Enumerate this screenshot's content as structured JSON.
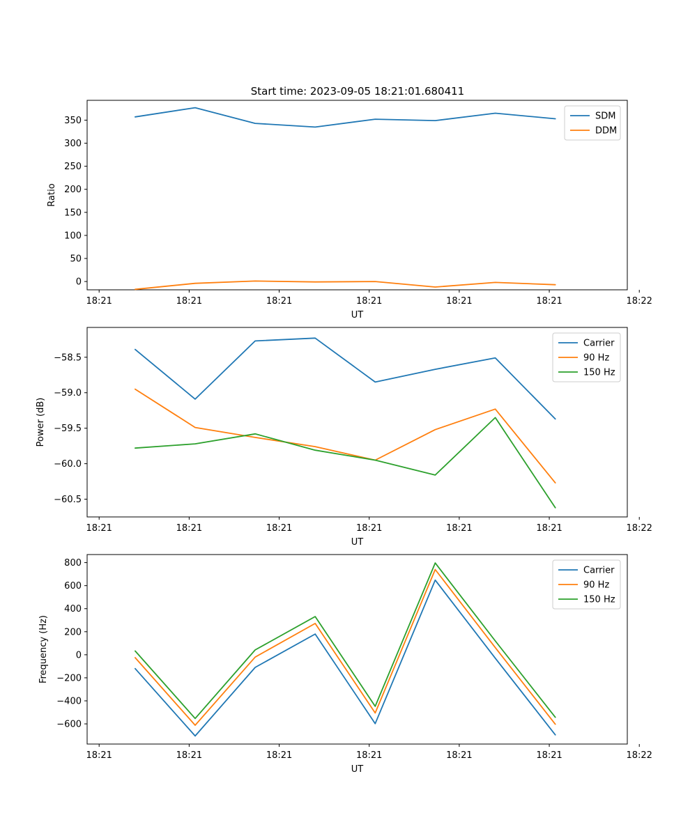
{
  "figure_title": "Start time: 2023-09-05 18:21:01.680411",
  "colors": {
    "blue": "#1f77b4",
    "orange": "#ff7f0e",
    "green": "#2ca02c"
  },
  "chart_data": [
    {
      "type": "line",
      "title": "Start time: 2023-09-05 18:21:01.680411",
      "xlabel": "UT",
      "ylabel": "Ratio",
      "x": [
        1,
        2,
        3,
        4,
        5,
        6,
        7,
        8
      ],
      "xlim": [
        0.2,
        9.2
      ],
      "x_ticks": [
        {
          "value": 0.4,
          "label": "18:21"
        },
        {
          "value": 1.9,
          "label": "18:21"
        },
        {
          "value": 3.4,
          "label": "18:21"
        },
        {
          "value": 4.9,
          "label": "18:21"
        },
        {
          "value": 6.4,
          "label": "18:21"
        },
        {
          "value": 7.9,
          "label": "18:21"
        },
        {
          "value": 9.4,
          "label": "18:22"
        }
      ],
      "ylim": [
        -18,
        393
      ],
      "y_ticks": [
        0,
        50,
        100,
        150,
        200,
        250,
        300,
        350
      ],
      "legend_position": "top-right",
      "series": [
        {
          "name": "SDM",
          "color": "#1f77b4",
          "values": [
            357,
            377,
            343,
            335,
            352,
            349,
            365,
            353
          ]
        },
        {
          "name": "DDM",
          "color": "#ff7f0e",
          "values": [
            -17,
            -4,
            1,
            -1,
            0,
            -12,
            -2,
            -7
          ]
        }
      ]
    },
    {
      "type": "line",
      "xlabel": "UT",
      "ylabel": "Power (dB)",
      "x": [
        1,
        2,
        3,
        4,
        5,
        6,
        7,
        8
      ],
      "xlim": [
        0.2,
        9.2
      ],
      "x_ticks": [
        {
          "value": 0.4,
          "label": "18:21"
        },
        {
          "value": 1.9,
          "label": "18:21"
        },
        {
          "value": 3.4,
          "label": "18:21"
        },
        {
          "value": 4.9,
          "label": "18:21"
        },
        {
          "value": 6.4,
          "label": "18:21"
        },
        {
          "value": 7.9,
          "label": "18:21"
        },
        {
          "value": 9.4,
          "label": "18:22"
        }
      ],
      "ylim": [
        -60.75,
        -58.08
      ],
      "y_ticks": [
        -60.5,
        -60.0,
        -59.5,
        -59.0,
        -58.5
      ],
      "legend_position": "top-right",
      "series": [
        {
          "name": "Carrier",
          "color": "#1f77b4",
          "values": [
            -58.39,
            -59.09,
            -58.27,
            -58.23,
            -58.85,
            -58.67,
            -58.51,
            -59.37
          ]
        },
        {
          "name": "90 Hz",
          "color": "#ff7f0e",
          "values": [
            -58.95,
            -59.49,
            -59.63,
            -59.76,
            -59.95,
            -59.52,
            -59.23,
            -60.27
          ]
        },
        {
          "name": "150 Hz",
          "color": "#2ca02c",
          "values": [
            -59.78,
            -59.72,
            -59.58,
            -59.81,
            -59.95,
            -60.16,
            -59.35,
            -60.62
          ]
        }
      ]
    },
    {
      "type": "line",
      "xlabel": "UT",
      "ylabel": "Frequency (Hz)",
      "x": [
        1,
        2,
        3,
        4,
        5,
        6,
        7,
        8
      ],
      "xlim": [
        0.2,
        9.2
      ],
      "x_ticks": [
        {
          "value": 0.4,
          "label": "18:21"
        },
        {
          "value": 1.9,
          "label": "18:21"
        },
        {
          "value": 3.4,
          "label": "18:21"
        },
        {
          "value": 4.9,
          "label": "18:21"
        },
        {
          "value": 6.4,
          "label": "18:21"
        },
        {
          "value": 7.9,
          "label": "18:21"
        },
        {
          "value": 9.4,
          "label": "18:22"
        }
      ],
      "ylim": [
        -775,
        870
      ],
      "y_ticks": [
        -600,
        -400,
        -200,
        0,
        200,
        400,
        600,
        800
      ],
      "legend_position": "top-right",
      "series": [
        {
          "name": "Carrier",
          "color": "#1f77b4",
          "values": [
            -120,
            -705,
            -110,
            180,
            -598,
            648,
            -30,
            -695
          ]
        },
        {
          "name": "90 Hz",
          "color": "#ff7f0e",
          "values": [
            -25,
            -612,
            -20,
            272,
            -505,
            740,
            62,
            -603
          ]
        },
        {
          "name": "150 Hz",
          "color": "#2ca02c",
          "values": [
            33,
            -553,
            42,
            332,
            -448,
            797,
            120,
            -543
          ]
        }
      ]
    }
  ]
}
